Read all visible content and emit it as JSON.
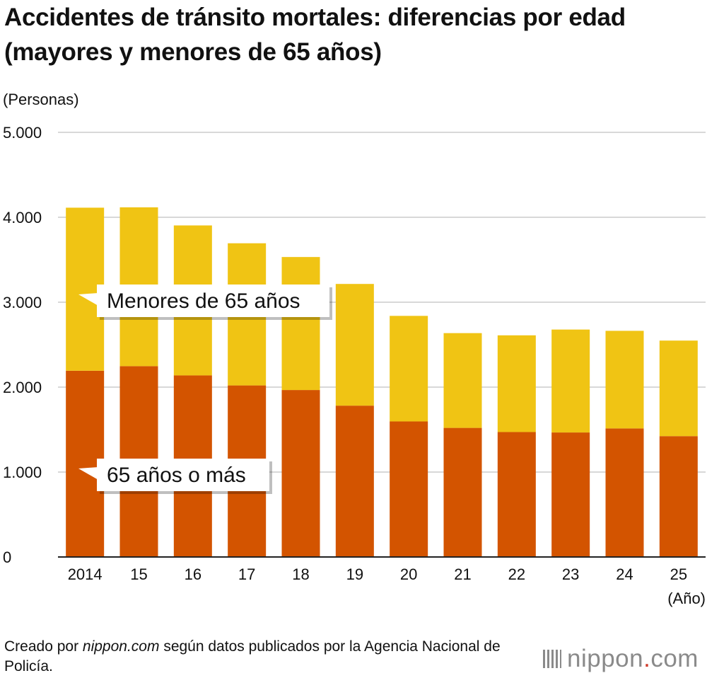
{
  "title": "Accidentes de tránsito mortales: diferencias por edad (mayores y menores de 65 años)",
  "unit_label": "(Personas)",
  "credit": {
    "prefix": "Creado por ",
    "site": "nippon.com",
    "suffix": " según datos publicados por la Agencia Nacional de Policía."
  },
  "logo": {
    "name": "nippon",
    "dot": ".",
    "tld": "com"
  },
  "colors": {
    "over65": "#d35400",
    "under65": "#f0c414",
    "grid": "#cccccc",
    "axis": "#222222"
  },
  "chart_data": {
    "type": "bar",
    "stacked": true,
    "title": "Accidentes de tránsito mortales: diferencias por edad (mayores y menores de 65 años)",
    "ylabel": "(Personas)",
    "xlabel": "(Año)",
    "ylim": [
      0,
      5000
    ],
    "yticks": [
      0,
      1000,
      2000,
      3000,
      4000,
      5000
    ],
    "ytick_labels": [
      "0",
      "1.000",
      "2.000",
      "3.000",
      "4.000",
      "5.000"
    ],
    "categories": [
      "2014",
      "15",
      "16",
      "17",
      "18",
      "19",
      "20",
      "21",
      "22",
      "23",
      "24",
      "25"
    ],
    "series": [
      {
        "name": "65 años o más",
        "color": "#d35400",
        "values": [
          2193,
          2247,
          2138,
          2020,
          1966,
          1782,
          1596,
          1520,
          1471,
          1466,
          1514,
          1423
        ]
      },
      {
        "name": "Menores de 65 años",
        "color": "#f0c414",
        "values": [
          1920,
          1870,
          1766,
          1674,
          1566,
          1433,
          1243,
          1116,
          1139,
          1212,
          1149,
          1125
        ]
      }
    ],
    "legend_callouts": [
      {
        "text": "Menores de 65 años",
        "series": "Menores de 65 años"
      },
      {
        "text": "65 años o más",
        "series": "65 años o más"
      }
    ],
    "grid": true
  }
}
